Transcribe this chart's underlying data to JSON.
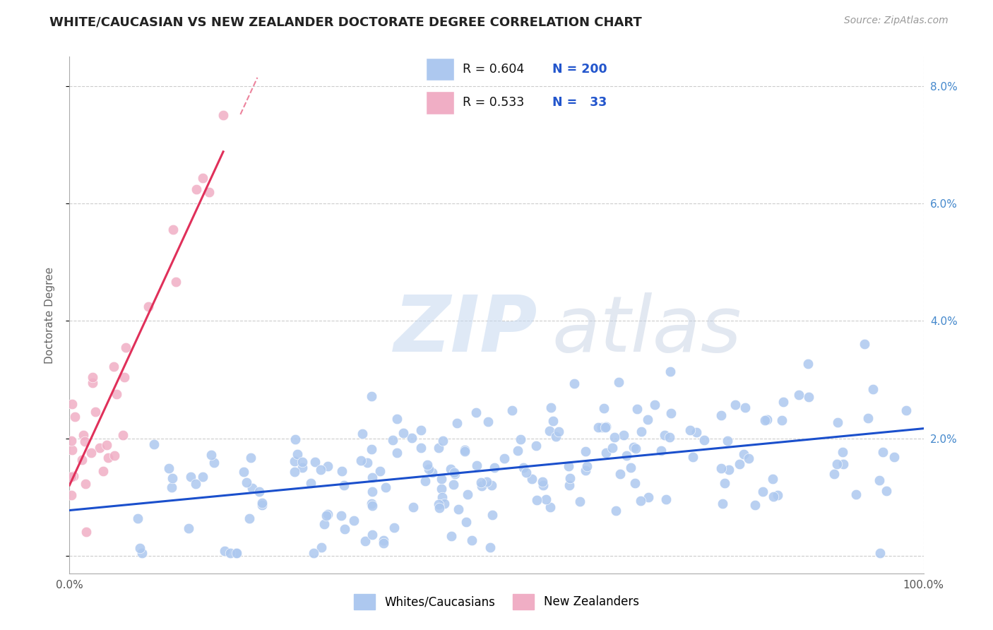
{
  "title": "WHITE/CAUCASIAN VS NEW ZEALANDER DOCTORATE DEGREE CORRELATION CHART",
  "source": "Source: ZipAtlas.com",
  "ylabel": "Doctorate Degree",
  "xlim": [
    0.0,
    100.0
  ],
  "ylim": [
    -0.3,
    8.5
  ],
  "yticks": [
    0.0,
    2.0,
    4.0,
    6.0,
    8.0
  ],
  "ytick_labels": [
    "",
    "2.0%",
    "4.0%",
    "6.0%",
    "8.0%"
  ],
  "xticks": [
    0.0,
    100.0
  ],
  "xtick_labels": [
    "0.0%",
    "100.0%"
  ],
  "blue_R": "0.604",
  "blue_N": "200",
  "pink_R": "0.533",
  "pink_N": "33",
  "legend_label_blue": "Whites/Caucasians",
  "legend_label_pink": "New Zealanders",
  "blue_color": "#adc8ef",
  "pink_color": "#f0aec5",
  "blue_line_color": "#1a4fcc",
  "pink_line_color": "#e0305a",
  "watermark_zip": "ZIP",
  "watermark_atlas": "atlas",
  "title_color": "#222222",
  "title_fontsize": 13,
  "background_color": "#ffffff",
  "grid_color": "#cccccc",
  "seed": 42
}
